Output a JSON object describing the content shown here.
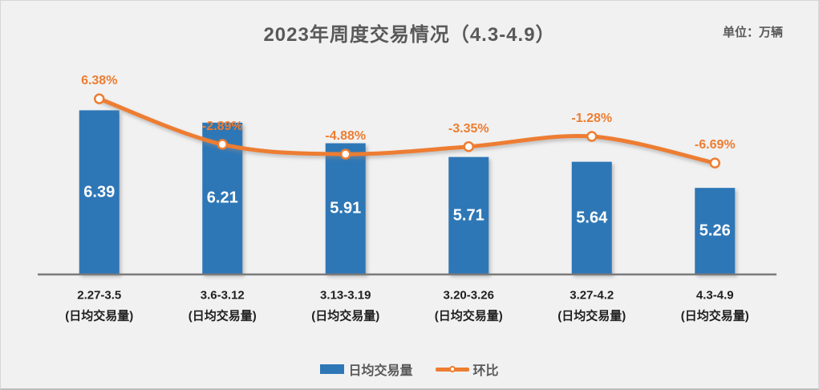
{
  "header": {
    "title": "2023年周度交易情况（4.3-4.9）",
    "unit_label": "单位：万辆"
  },
  "legend": {
    "items": [
      {
        "label": "日均交易量",
        "swatch": "bar-swatch"
      },
      {
        "label": "环比",
        "swatch": "line-with-marker-swatch"
      }
    ],
    "position": "bottom"
  },
  "colors": {
    "bar_blue": "#2E77B6",
    "line_orange": "#ED7D31",
    "title_gray": "#595959",
    "axis_gray": "#7a7a7a",
    "background": "#F1F1F1",
    "bar_value_text": "#FFFFFF",
    "category_text": "#1f1f1f"
  },
  "chart_data": {
    "type": "bar",
    "subtype": "bar-with-secondary-line",
    "title": "2023年周度交易情况（4.3-4.9）",
    "unit": "万辆",
    "categories": [
      "2.27-3.5",
      "3.6-3.12",
      "3.13-3.19",
      "3.20-3.26",
      "3.27-4.2",
      "4.3-4.9"
    ],
    "category_subtitle": "(日均交易量)",
    "series": [
      {
        "name": "日均交易量",
        "type": "bar",
        "axis": "primary",
        "values": [
          6.39,
          6.21,
          5.91,
          5.71,
          5.64,
          5.26
        ],
        "labels": [
          "6.39",
          "6.21",
          "5.91",
          "5.71",
          "5.64",
          "5.26"
        ],
        "label_position": "inside-center"
      },
      {
        "name": "环比",
        "type": "line",
        "axis": "secondary",
        "values_pct": [
          6.38,
          -2.89,
          -4.88,
          -3.35,
          -1.28,
          -6.69
        ],
        "labels": [
          "6.38%",
          "-2.89%",
          "-4.88%",
          "-3.35%",
          "-1.28%",
          "-6.69%"
        ],
        "label_position": "above-marker",
        "marker": "circle-white-fill-orange-ring"
      }
    ],
    "primary_ylim": [
      4,
      7
    ],
    "secondary_ylim_pct": [
      -29,
      12
    ],
    "axes_hidden": true,
    "grid": false,
    "legend_position": "bottom"
  }
}
